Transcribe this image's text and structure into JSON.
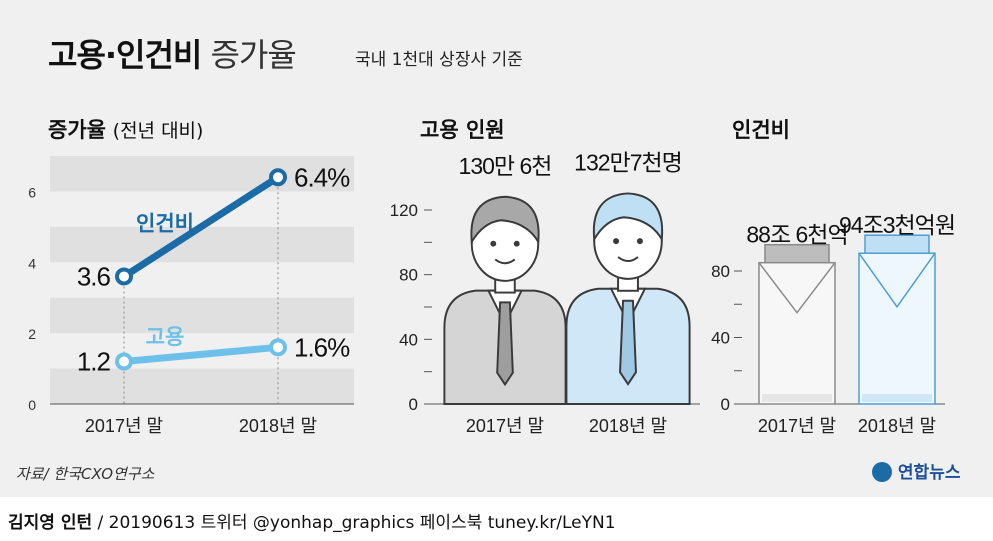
{
  "header": {
    "title_bold": "고용·인건비",
    "title_light": "증가율",
    "subtitle": "국내 1천대 상장사 기준"
  },
  "colors": {
    "labor_cost": "#1b6ba6",
    "employment": "#6dc0ea",
    "shirt_2017": "#d5d5d5",
    "shirt_2018": "#cfe7f6",
    "band": "#e0e0e0"
  },
  "chart_data": [
    {
      "type": "line",
      "title": "증가율",
      "title_note": "(전년 대비)",
      "categories": [
        "2017년 말",
        "2018년 말"
      ],
      "ylim": [
        0,
        7
      ],
      "yticks": [
        "0",
        "2",
        "4",
        "6"
      ],
      "grid": "alternating bands",
      "series": [
        {
          "name": "인건비",
          "values": [
            3.6,
            6.4
          ],
          "labels": [
            "3.6",
            "6.4%"
          ],
          "color": "#1b6ba6"
        },
        {
          "name": "고용",
          "values": [
            1.2,
            1.6
          ],
          "labels": [
            "1.2",
            "1.6%"
          ],
          "color": "#6dc0ea"
        }
      ]
    },
    {
      "type": "bar",
      "title": "고용 인원",
      "categories": [
        "2017년 말",
        "2018년 말"
      ],
      "values": [
        130.6,
        132.7
      ],
      "value_labels": [
        "130만 6천",
        "132만7천명"
      ],
      "ylim": [
        0,
        120
      ],
      "yticks": [
        "0",
        "40",
        "80",
        "120"
      ],
      "unit": "만명",
      "icon": "person-pictogram"
    },
    {
      "type": "bar",
      "title": "인건비",
      "categories": [
        "2017년 말",
        "2018년 말"
      ],
      "values": [
        88.6,
        94.3
      ],
      "value_labels": [
        "88조 6천억",
        "94조3천억원"
      ],
      "ylim": [
        0,
        80
      ],
      "yticks": [
        "0",
        "40",
        "80"
      ],
      "unit": "조원",
      "icon": "pay-envelope"
    }
  ],
  "source": "자료/ 한국CXO연구소",
  "logo": "연합뉴스",
  "footer": {
    "author": "김지영 인턴",
    "credit": " / 20190613 트위터 @yonhap_graphics  페이스북 tuney.kr/LeYN1"
  }
}
